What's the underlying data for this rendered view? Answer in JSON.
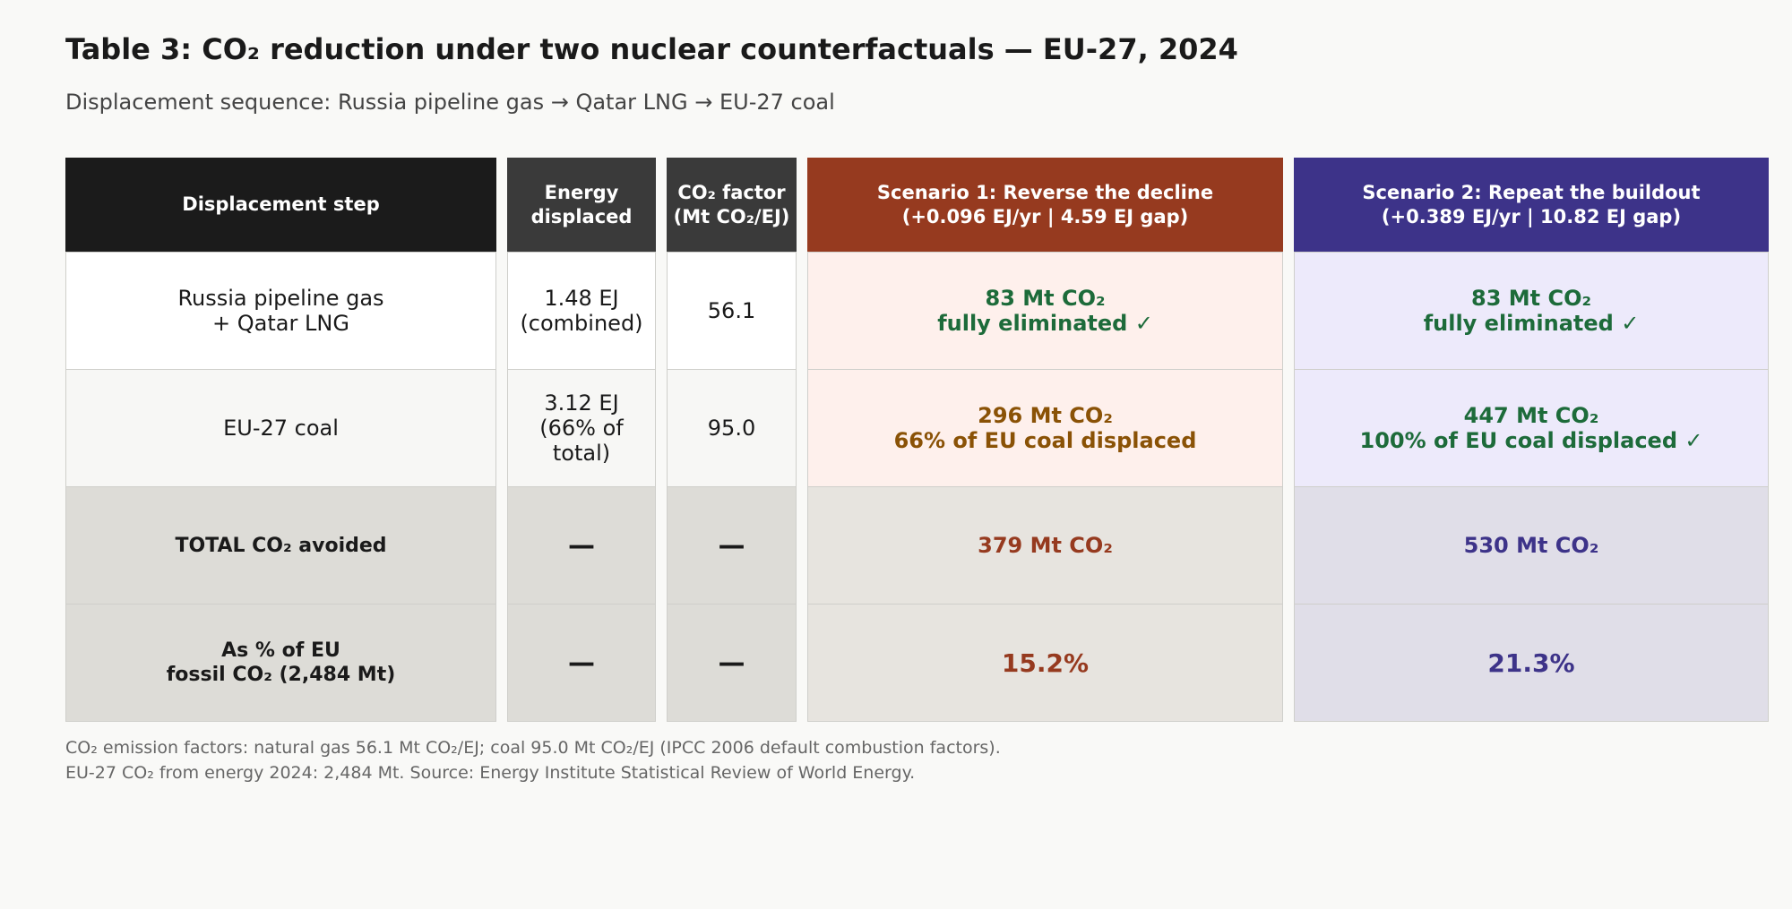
{
  "title": "Table 3: CO₂ reduction under two nuclear counterfactuals — EU-27, 2024",
  "subtitle": "Displacement sequence: Russia pipeline gas → Qatar LNG → EU-27 coal",
  "colors": {
    "header_dark": "#1b1b1b",
    "header_mid": "#3a3a3a",
    "scenario1": "#963a1f",
    "scenario2": "#3d3389",
    "green": "#1d6b3a",
    "amber": "#8a5206"
  },
  "headers": {
    "step": "Displacement step",
    "energy": "Energy\ndisplaced",
    "factor": "CO₂ factor\n(Mt CO₂/EJ)",
    "scenario1": "Scenario 1: Reverse the decline\n(+0.096 EJ/yr  |  4.59 EJ gap)",
    "scenario2": "Scenario 2: Repeat the buildout\n(+0.389 EJ/yr  |  10.82 EJ gap)"
  },
  "rows": [
    {
      "step": "Russia pipeline gas\n+ Qatar LNG",
      "energy": "1.48 EJ\n(combined)",
      "factor": "56.1",
      "scenario1": "83 Mt CO₂\nfully eliminated ✓",
      "scenario2": "83 Mt CO₂\nfully eliminated ✓"
    },
    {
      "step": "EU-27 coal",
      "energy": "3.12 EJ\n(66% of total)",
      "factor": "95.0",
      "scenario1": "296 Mt CO₂\n66% of EU coal displaced",
      "scenario2": "447 Mt CO₂\n100% of EU coal displaced ✓"
    },
    {
      "step": "TOTAL CO₂ avoided",
      "energy": "—",
      "factor": "—",
      "scenario1": "379 Mt CO₂",
      "scenario2": "530 Mt CO₂"
    },
    {
      "step": "As % of EU\nfossil CO₂ (2,484 Mt)",
      "energy": "—",
      "factor": "—",
      "scenario1": "15.2%",
      "scenario2": "21.3%"
    }
  ],
  "footer": {
    "line1": "CO₂ emission factors: natural gas 56.1 Mt CO₂/EJ; coal 95.0 Mt CO₂/EJ (IPCC 2006 default combustion factors).",
    "line2": "EU-27 CO₂ from energy 2024: 2,484 Mt. Source: Energy Institute Statistical Review of World Energy."
  }
}
